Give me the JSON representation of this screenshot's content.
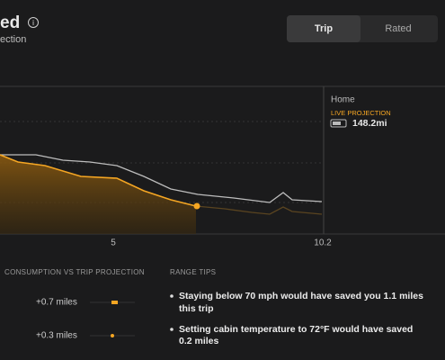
{
  "header": {
    "title": "ed",
    "subtitle": "ection"
  },
  "tabs": [
    "Trip",
    "Rated"
  ],
  "chart": {
    "xticks": [
      "5",
      "10.2"
    ],
    "destination": "Home",
    "projection_label": "LIVE PROJECTION",
    "projected_range": "148.2mi"
  },
  "consumption": {
    "title": "CONSUMPTION VS TRIP PROJECTION",
    "rows": [
      "+0.7 miles",
      "+0.3 miles"
    ]
  },
  "range_tips": {
    "title": "RANGE TIPS",
    "tips": [
      [
        "Staying below 70 mph would have saved you 1.1 miles",
        "this trip"
      ],
      [
        "Setting cabin temperature to 72°F would have saved",
        "0.2 miles"
      ]
    ]
  }
}
